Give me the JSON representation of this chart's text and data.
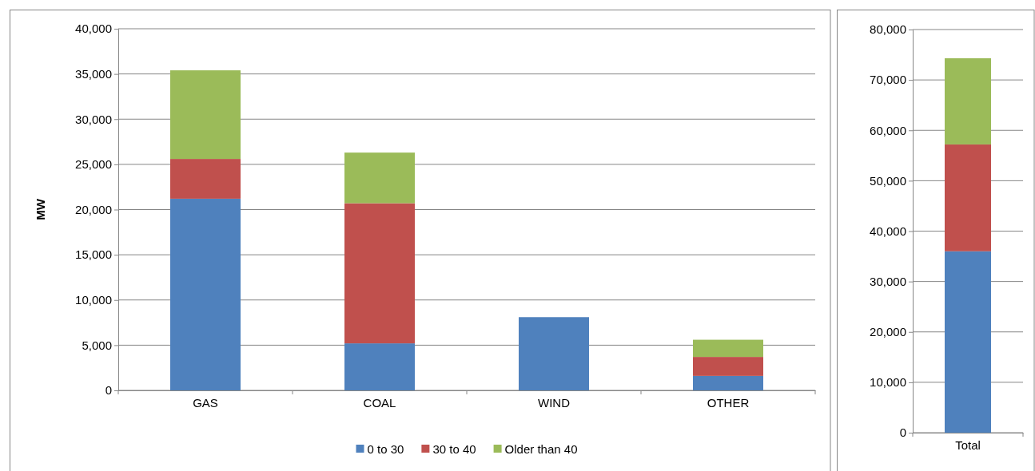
{
  "chart_data": [
    {
      "type": "bar",
      "stacked": true,
      "ylabel": "MW",
      "categories": [
        "GAS",
        "COAL",
        "WIND",
        "OTHER"
      ],
      "ylim": [
        0,
        40000
      ],
      "yticks": [
        {
          "value": 0,
          "label": "0"
        },
        {
          "value": 5000,
          "label": "5,000"
        },
        {
          "value": 10000,
          "label": "10,000"
        },
        {
          "value": 15000,
          "label": "15,000"
        },
        {
          "value": 20000,
          "label": "20,000"
        },
        {
          "value": 25000,
          "label": "25,000"
        },
        {
          "value": 30000,
          "label": "30,000"
        },
        {
          "value": 35000,
          "label": "35,000"
        },
        {
          "value": 40000,
          "label": "40,000"
        }
      ],
      "grid": "y",
      "legend": "bottom",
      "series": [
        {
          "name": "0 to 30",
          "color": "#4f81bd",
          "values": [
            21200,
            5200,
            8100,
            1600
          ]
        },
        {
          "name": "30 to 40",
          "color": "#c0504d",
          "values": [
            4400,
            15500,
            0,
            2100
          ]
        },
        {
          "name": "Older than 40",
          "color": "#9bbb59",
          "values": [
            9800,
            5600,
            0,
            1900
          ]
        }
      ]
    },
    {
      "type": "bar",
      "stacked": true,
      "categories": [
        "Total"
      ],
      "ylim": [
        0,
        80000
      ],
      "yticks": [
        {
          "value": 0,
          "label": "0"
        },
        {
          "value": 10000,
          "label": "10,000"
        },
        {
          "value": 20000,
          "label": "20,000"
        },
        {
          "value": 30000,
          "label": "30,000"
        },
        {
          "value": 40000,
          "label": "40,000"
        },
        {
          "value": 50000,
          "label": "50,000"
        },
        {
          "value": 60000,
          "label": "60,000"
        },
        {
          "value": 70000,
          "label": "70,000"
        },
        {
          "value": 80000,
          "label": "80,000"
        }
      ],
      "grid": "y",
      "series": [
        {
          "color": "#4f81bd",
          "values": [
            36000
          ]
        },
        {
          "color": "#c0504d",
          "values": [
            21200
          ]
        },
        {
          "color": "#9bbb59",
          "values": [
            17100
          ]
        }
      ]
    }
  ]
}
